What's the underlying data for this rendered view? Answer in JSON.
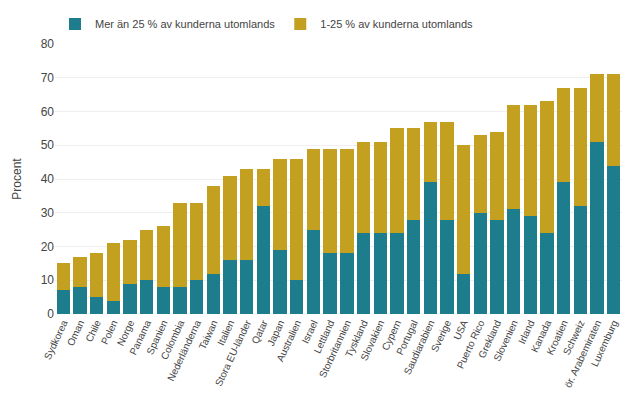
{
  "chart_data": {
    "type": "bar",
    "stacked": true,
    "categories": [
      "Sydkorea",
      "Oman",
      "Chile",
      "Polen",
      "Norge",
      "Panama",
      "Spanien",
      "Colombia",
      "Nederländerna",
      "Taiwan",
      "Italien",
      "Stora EU-länder",
      "Qatar",
      "Japan",
      "Australien",
      "Israel",
      "Lettland",
      "Storbritannien",
      "Tyskland",
      "Slovakien",
      "Cypern",
      "Portugal",
      "Saudiarabien",
      "Sverige",
      "USA",
      "Puerto Rico",
      "Grekland",
      "Slovenien",
      "Irland",
      "Kanada",
      "Kroatien",
      "Schweiz",
      "ör. Arabemiraten",
      "Luxemburg"
    ],
    "series": [
      {
        "name": "Mer än 25 % av kunderna utomlands",
        "color": "#1e7d8c",
        "values": [
          7,
          8,
          5,
          4,
          9,
          10,
          8,
          8,
          10,
          12,
          16,
          16,
          32,
          19,
          10,
          25,
          18,
          18,
          24,
          24,
          24,
          28,
          39,
          28,
          12,
          30,
          28,
          31,
          29,
          24,
          39,
          32,
          51,
          44
        ]
      },
      {
        "name": "1-25 % av kunderna utomlands",
        "color": "#c4a020",
        "values": [
          8,
          9,
          13,
          17,
          13,
          15,
          18,
          25,
          23,
          26,
          25,
          27,
          11,
          27,
          36,
          24,
          31,
          31,
          27,
          27,
          31,
          27,
          18,
          29,
          38,
          23,
          26,
          31,
          33,
          39,
          28,
          35,
          20,
          27
        ]
      }
    ],
    "ylabel": "Procent",
    "ylim": [
      0,
      80
    ],
    "yticks": [
      0,
      10,
      20,
      30,
      40,
      50,
      60,
      70,
      80
    ],
    "grid": true,
    "legend": "top"
  }
}
